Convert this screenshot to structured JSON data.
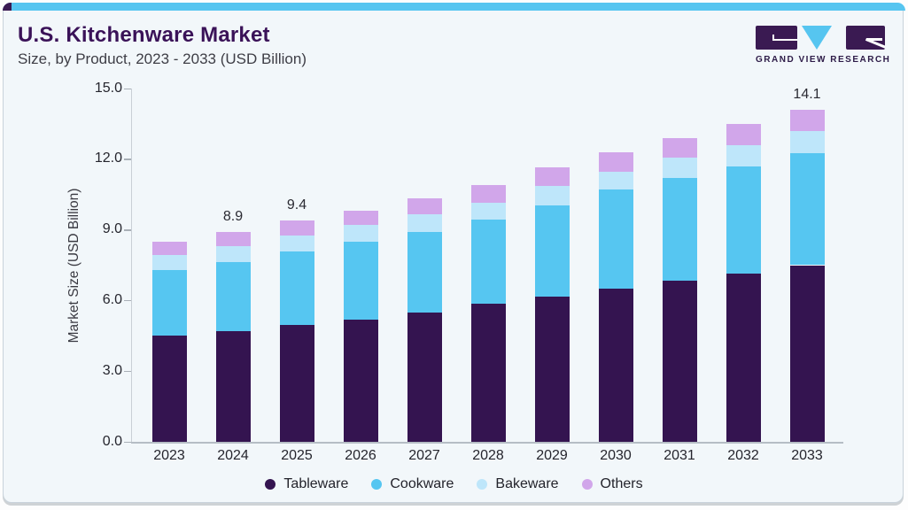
{
  "header": {
    "title": "U.S. Kitchenware Market",
    "subtitle": "Size, by Product, 2023 - 2033 (USD Billion)"
  },
  "logo": {
    "text": "GRAND VIEW RESEARCH"
  },
  "theme": {
    "accent_blue": "#56C5F0",
    "accent_purple": "#3A1A52",
    "title_color": "#3A1258",
    "card_background": "#F2F7FA",
    "axis_color": "#B6BDC5",
    "text_color": "#25252D"
  },
  "chart_data": {
    "type": "bar",
    "stacked": true,
    "title": "U.S. Kitchenware Market",
    "subtitle": "Size, by Product, 2023 - 2033 (USD Billion)",
    "categories": [
      "2023",
      "2024",
      "2025",
      "2026",
      "2027",
      "2028",
      "2029",
      "2030",
      "2031",
      "2032",
      "2033"
    ],
    "series": [
      {
        "name": "Tableware",
        "color": "#341450",
        "values": [
          4.5,
          4.7,
          4.95,
          5.2,
          5.5,
          5.85,
          6.15,
          6.5,
          6.85,
          7.15,
          7.5
        ]
      },
      {
        "name": "Cookware",
        "color": "#56C6F1",
        "values": [
          2.8,
          2.95,
          3.15,
          3.3,
          3.4,
          3.6,
          3.9,
          4.2,
          4.35,
          4.55,
          4.75
        ]
      },
      {
        "name": "Bakeware",
        "color": "#BEE6FA",
        "values": [
          0.65,
          0.65,
          0.65,
          0.7,
          0.75,
          0.7,
          0.8,
          0.75,
          0.85,
          0.9,
          0.95
        ]
      },
      {
        "name": "Others",
        "color": "#D1A6EA",
        "values": [
          0.55,
          0.6,
          0.65,
          0.6,
          0.7,
          0.75,
          0.8,
          0.85,
          0.85,
          0.9,
          0.9
        ]
      }
    ],
    "totals": [
      8.5,
      8.9,
      9.4,
      9.8,
      10.35,
      10.9,
      11.65,
      12.3,
      12.9,
      13.5,
      14.1
    ],
    "total_labels": {
      "2024": "8.9",
      "2025": "9.4",
      "2033": "14.1"
    },
    "ylabel": "Market Size (USD Billion)",
    "yticks": [
      "0.0",
      "3.0",
      "6.0",
      "9.0",
      "12.0",
      "15.0"
    ],
    "ylim": [
      0,
      15
    ],
    "grid": false,
    "legend_position": "bottom"
  }
}
